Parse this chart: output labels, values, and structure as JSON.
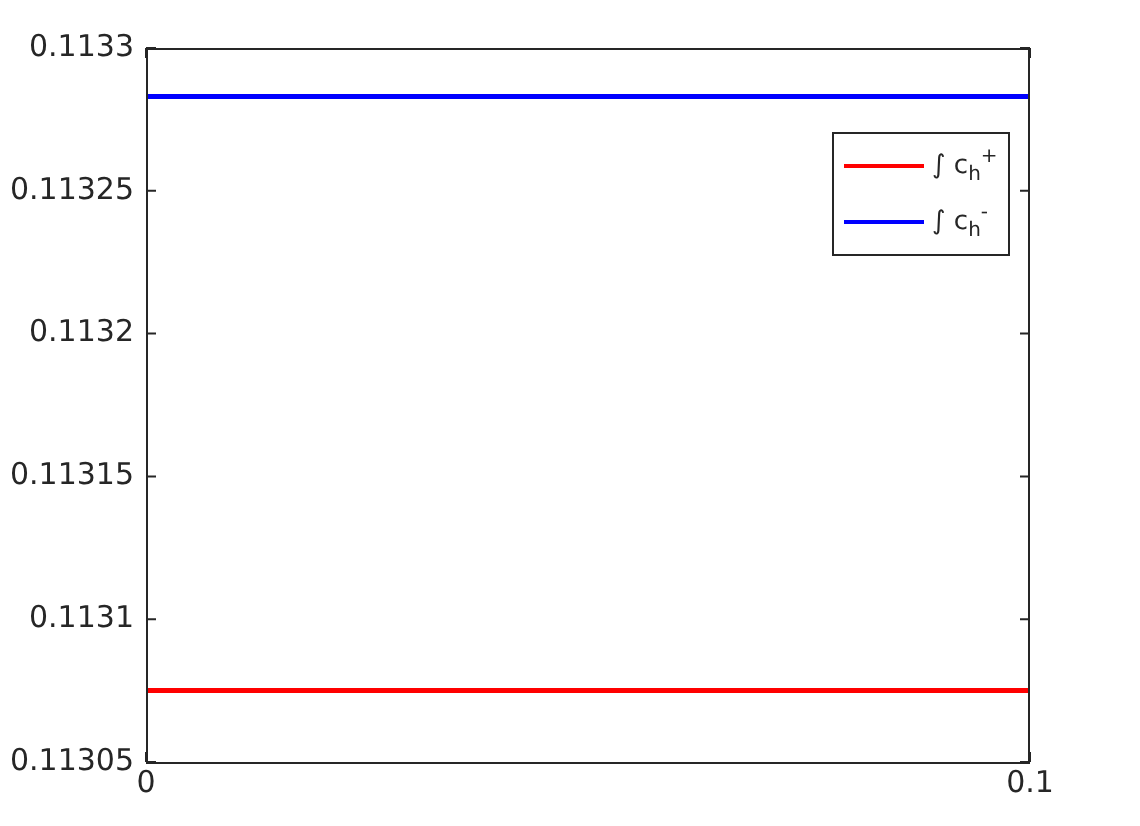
{
  "chart_data": {
    "type": "line",
    "x": [
      0,
      0.1
    ],
    "series": [
      {
        "name": "∫ c$_{h}$$^{+}$",
        "color": "#ff0000",
        "values": [
          0.113075,
          0.113075
        ]
      },
      {
        "name": "∫ c$_{h}$$^{-}$",
        "color": "#0000ff",
        "values": [
          0.113283,
          0.113283
        ]
      }
    ],
    "xlim": [
      0,
      0.1
    ],
    "xticks": [
      0,
      0.1
    ],
    "ylim": [
      0.11305,
      0.1133
    ],
    "yticks": [
      0.11305,
      0.1131,
      0.11315,
      0.1132,
      0.11325,
      0.1133
    ],
    "legend": "top right",
    "grid": false,
    "marker": "none",
    "line_style": "solid"
  }
}
